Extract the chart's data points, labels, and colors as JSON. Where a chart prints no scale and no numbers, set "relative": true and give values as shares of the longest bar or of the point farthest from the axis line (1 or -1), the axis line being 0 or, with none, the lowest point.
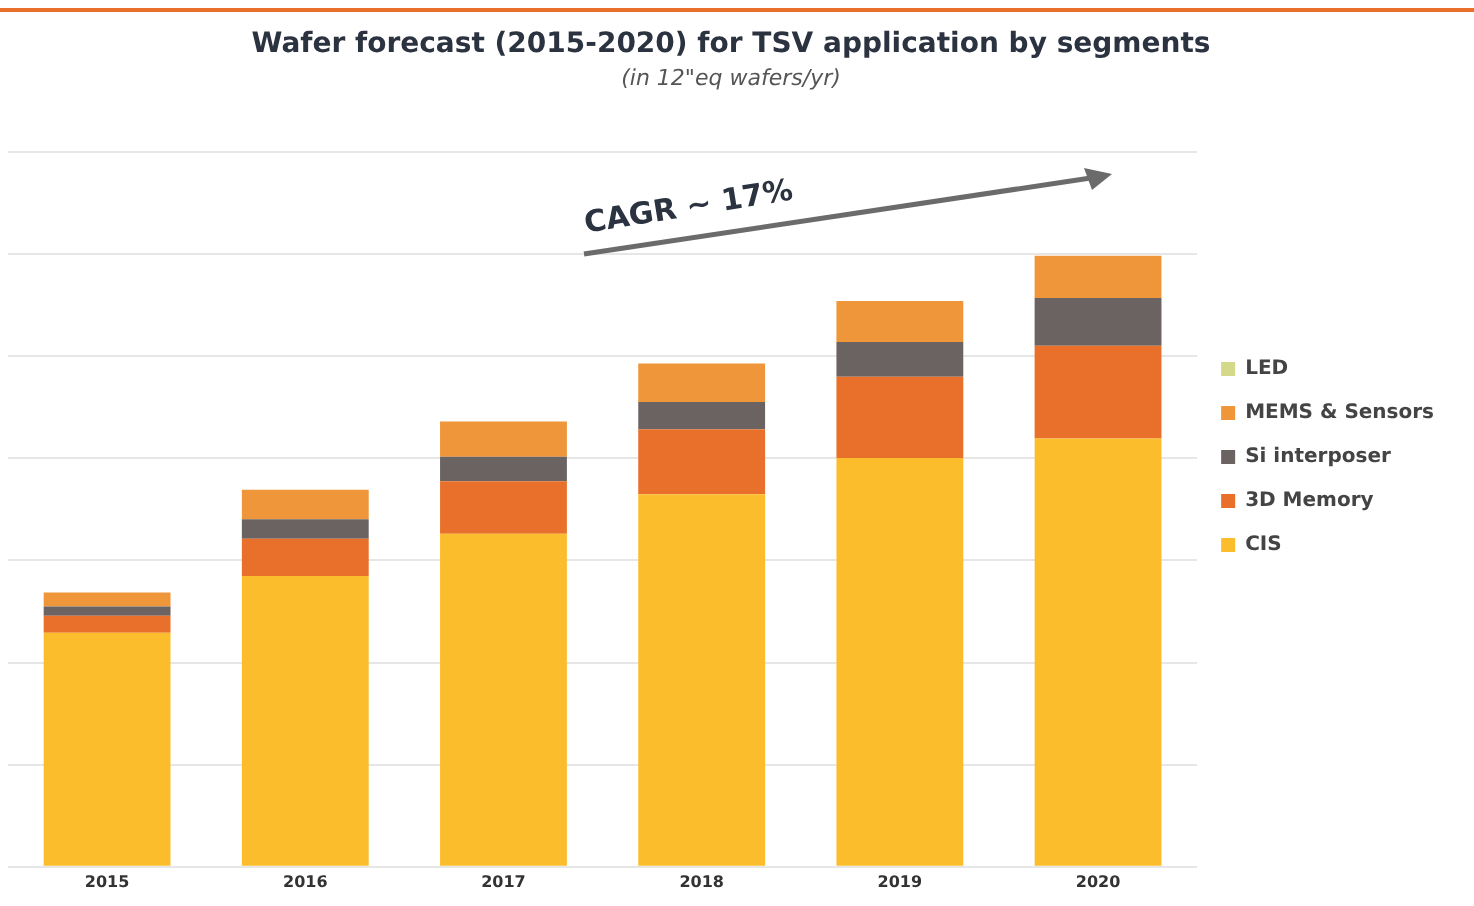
{
  "chart_data": {
    "type": "bar",
    "title": "Wafer forecast (2015-2020) for TSV application by segments",
    "subtitle": "(in 12\"eq wafers/yr)",
    "categories": [
      "2015",
      "2016",
      "2017",
      "2018",
      "2019",
      "2020"
    ],
    "stacked": true,
    "relative": true,
    "grid": "y",
    "legend": "right",
    "annotations": [
      "CAGR ~ 17%"
    ],
    "series": [
      {
        "name": "CIS",
        "color": "#fbbd2c",
        "values": [
          0.383,
          0.476,
          0.545,
          0.61,
          0.669,
          0.701
        ]
      },
      {
        "name": "3D Memory",
        "color": "#e8702a",
        "values": [
          0.028,
          0.061,
          0.086,
          0.106,
          0.133,
          0.152
        ]
      },
      {
        "name": "Si interposer",
        "color": "#6b6361",
        "values": [
          0.015,
          0.032,
          0.04,
          0.045,
          0.057,
          0.078
        ]
      },
      {
        "name": "MEMS & Sensors",
        "color": "#f0963a",
        "values": [
          0.023,
          0.048,
          0.058,
          0.063,
          0.067,
          0.069
        ]
      },
      {
        "name": "LED",
        "color": "#d4d98a",
        "values": [
          0,
          0,
          0,
          0,
          0,
          0
        ]
      }
    ]
  }
}
